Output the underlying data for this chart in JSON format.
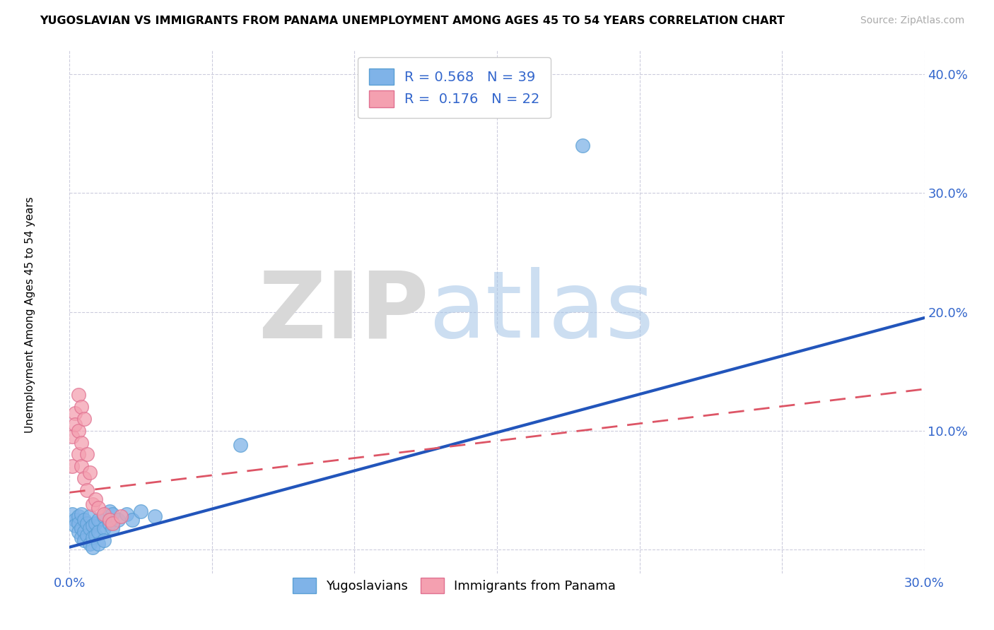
{
  "title": "YUGOSLAVIAN VS IMMIGRANTS FROM PANAMA UNEMPLOYMENT AMONG AGES 45 TO 54 YEARS CORRELATION CHART",
  "source": "Source: ZipAtlas.com",
  "ylabel": "Unemployment Among Ages 45 to 54 years",
  "xlim": [
    0.0,
    0.3
  ],
  "ylim": [
    -0.02,
    0.42
  ],
  "background_color": "#ffffff",
  "watermark_zip": "ZIP",
  "watermark_atlas": "atlas",
  "yugoslavian_color": "#7fb3e8",
  "yugoslavian_edge": "#5a9fd4",
  "panama_color": "#f4a0b0",
  "panama_edge": "#e07090",
  "yugoslavian_line_color": "#2255bb",
  "panama_line_color": "#dd5566",
  "legend_R_yugoslavian": "0.568",
  "legend_N_yugoslavian": "39",
  "legend_R_panama": "0.176",
  "legend_N_panama": "22",
  "yugoslavian_scatter": [
    [
      0.001,
      0.03
    ],
    [
      0.002,
      0.025
    ],
    [
      0.002,
      0.02
    ],
    [
      0.003,
      0.028
    ],
    [
      0.003,
      0.022
    ],
    [
      0.003,
      0.015
    ],
    [
      0.004,
      0.03
    ],
    [
      0.004,
      0.018
    ],
    [
      0.004,
      0.01
    ],
    [
      0.005,
      0.025
    ],
    [
      0.005,
      0.015
    ],
    [
      0.005,
      0.008
    ],
    [
      0.006,
      0.022
    ],
    [
      0.006,
      0.012
    ],
    [
      0.007,
      0.028
    ],
    [
      0.007,
      0.018
    ],
    [
      0.007,
      0.005
    ],
    [
      0.008,
      0.02
    ],
    [
      0.008,
      0.01
    ],
    [
      0.008,
      0.002
    ],
    [
      0.009,
      0.022
    ],
    [
      0.009,
      0.012
    ],
    [
      0.01,
      0.025
    ],
    [
      0.01,
      0.015
    ],
    [
      0.01,
      0.005
    ],
    [
      0.012,
      0.028
    ],
    [
      0.012,
      0.018
    ],
    [
      0.012,
      0.008
    ],
    [
      0.014,
      0.032
    ],
    [
      0.014,
      0.022
    ],
    [
      0.015,
      0.03
    ],
    [
      0.015,
      0.018
    ],
    [
      0.017,
      0.025
    ],
    [
      0.02,
      0.03
    ],
    [
      0.022,
      0.025
    ],
    [
      0.025,
      0.032
    ],
    [
      0.03,
      0.028
    ],
    [
      0.06,
      0.088
    ],
    [
      0.18,
      0.34
    ]
  ],
  "panama_scatter": [
    [
      0.001,
      0.07
    ],
    [
      0.001,
      0.095
    ],
    [
      0.002,
      0.115
    ],
    [
      0.002,
      0.105
    ],
    [
      0.003,
      0.13
    ],
    [
      0.003,
      0.1
    ],
    [
      0.003,
      0.08
    ],
    [
      0.004,
      0.12
    ],
    [
      0.004,
      0.09
    ],
    [
      0.004,
      0.07
    ],
    [
      0.005,
      0.11
    ],
    [
      0.005,
      0.06
    ],
    [
      0.006,
      0.08
    ],
    [
      0.006,
      0.05
    ],
    [
      0.007,
      0.065
    ],
    [
      0.008,
      0.038
    ],
    [
      0.009,
      0.042
    ],
    [
      0.01,
      0.035
    ],
    [
      0.012,
      0.03
    ],
    [
      0.014,
      0.025
    ],
    [
      0.015,
      0.022
    ],
    [
      0.018,
      0.028
    ]
  ],
  "yugo_trendline_x": [
    0.0,
    0.3
  ],
  "yugo_trendline_y": [
    0.002,
    0.195
  ],
  "panama_trendline_x": [
    0.0,
    0.3
  ],
  "panama_trendline_y": [
    0.048,
    0.135
  ]
}
